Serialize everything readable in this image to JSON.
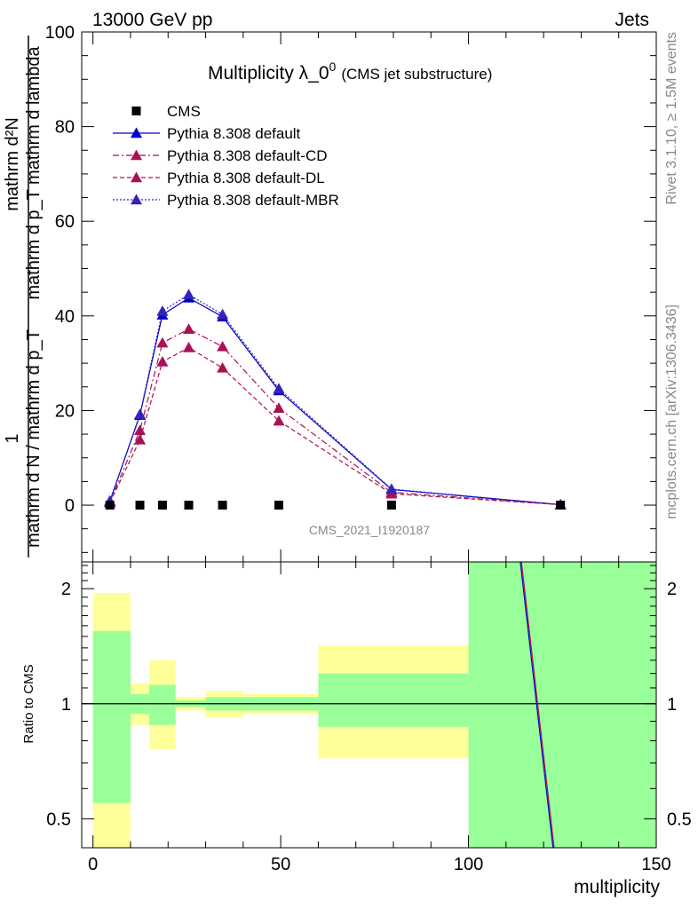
{
  "header": {
    "left": "13000 GeV pp",
    "right": "Jets"
  },
  "side_labels": {
    "rivet": "Rivet 3.1.10, ≥ 1.5M events",
    "site": "mcplots.cern.ch [arXiv:1306.3436]"
  },
  "chart_data": {
    "type": "line",
    "title": "Multiplicity λ_0",
    "title_sup": "0",
    "subtitle": "(CMS jet substructure)",
    "analysis_label": "CMS_2021_I1920187",
    "xlabel": "multiplicity",
    "ylabel_top_numerator": "1",
    "ylabel_top_denominator": "mathrm d N / mathrm d p_T",
    "ylabel_top_main": "mathrm d²N",
    "ylabel_top_main_den": "mathrm d p_T mathrm d lambda",
    "ylabel_ratio": "Ratio to CMS",
    "xlim": [
      -3,
      150
    ],
    "ylim": [
      -12,
      100
    ],
    "ratio_ylim": [
      0.42,
      2.35
    ],
    "x_ticks": [
      0,
      50,
      100,
      150
    ],
    "y_ticks": [
      0,
      20,
      40,
      60,
      80,
      100
    ],
    "ratio_ticks": [
      0.5,
      1,
      2
    ],
    "x": [
      4.5,
      12.5,
      18.5,
      25.5,
      34.5,
      49.5,
      79.5,
      124.5
    ],
    "bin_edges": [
      0,
      10,
      15,
      22,
      30,
      40,
      60,
      100,
      150
    ],
    "series": [
      {
        "name": "CMS",
        "color": "#000000",
        "style": "marker",
        "values": [
          0,
          0,
          0,
          0,
          0,
          0,
          0,
          0
        ]
      },
      {
        "name": "Pythia 8.308 default",
        "color": "#0000cc",
        "style": "solid",
        "values": [
          0.8,
          19.0,
          40.2,
          43.8,
          39.8,
          24.2,
          3.3,
          0.1
        ]
      },
      {
        "name": "Pythia 8.308 default-CD",
        "color": "#aa1155",
        "style": "dashdot",
        "values": [
          0.6,
          15.8,
          34.3,
          37.2,
          33.5,
          20.5,
          2.7,
          0.1
        ]
      },
      {
        "name": "Pythia 8.308 default-DL",
        "color": "#aa1155",
        "style": "dashed",
        "values": [
          0.5,
          13.8,
          30.3,
          33.3,
          29.0,
          17.8,
          2.4,
          0.1
        ]
      },
      {
        "name": "Pythia 8.308 default-MBR",
        "color": "#3322bb",
        "style": "dotted",
        "values": [
          0.9,
          19.2,
          41.0,
          44.5,
          40.3,
          24.6,
          3.4,
          0.1
        ]
      }
    ],
    "ratio_bands": {
      "yellow": [
        [
          0.3,
          1.95
        ],
        [
          0.88,
          1.13
        ],
        [
          0.76,
          1.3
        ],
        [
          0.96,
          1.04
        ],
        [
          0.92,
          1.08
        ],
        [
          0.94,
          1.06
        ],
        [
          0.72,
          1.42
        ],
        [
          0.3,
          2.5
        ]
      ],
      "green": [
        [
          0.55,
          1.55
        ],
        [
          0.94,
          1.06
        ],
        [
          0.88,
          1.12
        ],
        [
          0.98,
          1.02
        ],
        [
          0.96,
          1.04
        ],
        [
          0.96,
          1.04
        ],
        [
          0.87,
          1.2
        ],
        [
          0.3,
          2.5
        ]
      ],
      "yellow_color": "#ffff99",
      "green_color": "#99ff99"
    },
    "ratio_lines": [
      {
        "name": "Pythia 8.308 default",
        "color": "#0000cc",
        "from": [
          113.8,
          2.35
        ],
        "to": [
          122.5,
          0.42
        ]
      },
      {
        "name": "Pythia 8.308 default-CD",
        "color": "#aa1155",
        "from": [
          114.1,
          2.35
        ],
        "to": [
          122.8,
          0.42
        ]
      }
    ]
  }
}
